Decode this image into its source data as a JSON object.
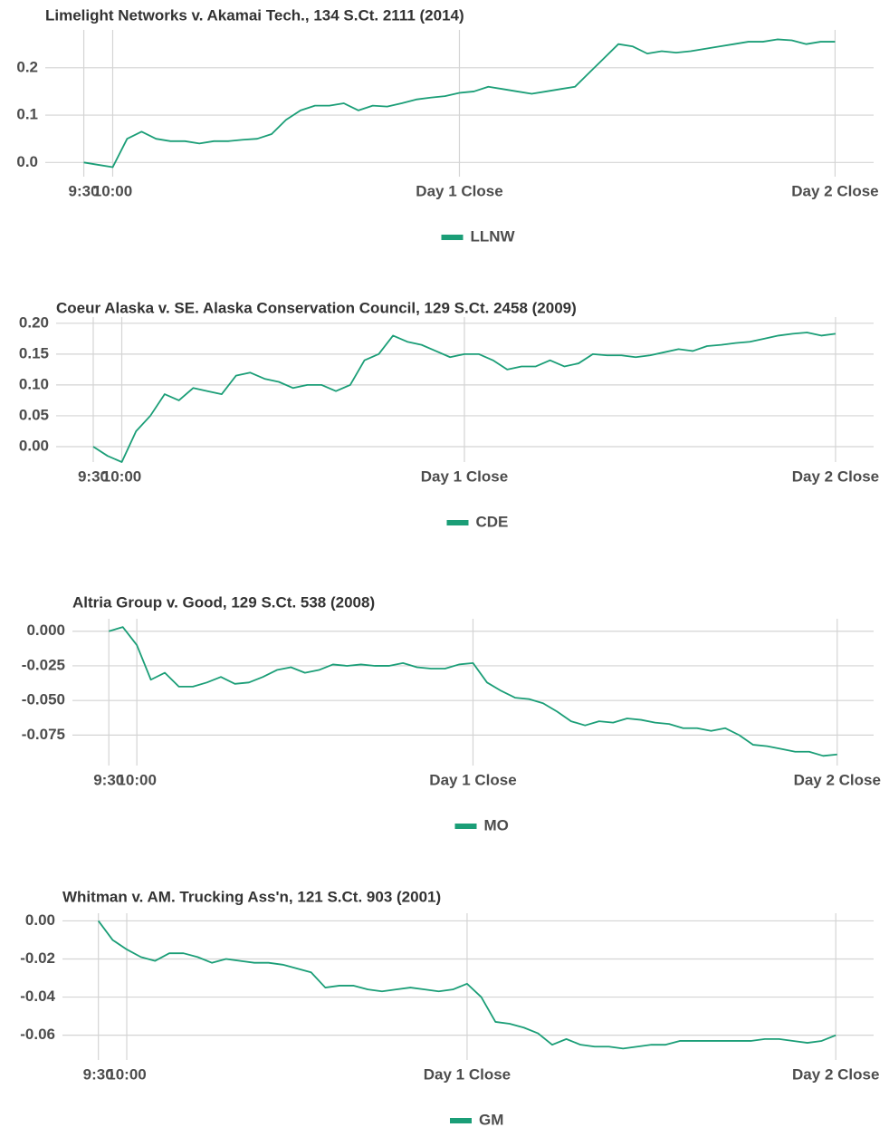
{
  "chart_data": [
    {
      "type": "line",
      "title": "Limelight Networks v. Akamai Tech., 134 S.Ct. 2111 (2014)",
      "x": [
        0,
        15,
        30,
        45,
        60,
        75,
        90,
        105,
        120,
        135,
        150,
        165,
        180,
        195,
        210,
        225,
        240,
        255,
        270,
        285,
        300,
        315,
        330,
        345,
        360,
        375,
        390,
        405,
        420,
        435,
        450,
        465,
        480,
        495,
        510,
        525,
        540,
        555,
        570,
        585,
        600,
        615,
        630,
        645,
        660,
        675,
        690,
        705,
        720,
        735,
        750,
        765,
        780
      ],
      "series": [
        {
          "name": "LLNW",
          "color": "#1b9e77",
          "values": [
            0.0,
            -0.005,
            -0.01,
            0.05,
            0.065,
            0.05,
            0.045,
            0.045,
            0.04,
            0.045,
            0.045,
            0.048,
            0.05,
            0.06,
            0.09,
            0.11,
            0.12,
            0.12,
            0.125,
            0.11,
            0.12,
            0.118,
            0.125,
            0.133,
            0.137,
            0.14,
            0.147,
            0.15,
            0.16,
            0.155,
            0.15,
            0.145,
            0.15,
            0.155,
            0.16,
            0.19,
            0.22,
            0.25,
            0.245,
            0.23,
            0.235,
            0.232,
            0.235,
            0.24,
            0.245,
            0.25,
            0.255,
            0.255,
            0.26,
            0.258,
            0.25,
            0.255,
            0.255
          ]
        }
      ],
      "xlim": [
        -40,
        820
      ],
      "xticks": [
        {
          "value": 0,
          "label": "9:30"
        },
        {
          "value": 30,
          "label": "10:00"
        },
        {
          "value": 390,
          "label": "Day 1 Close"
        },
        {
          "value": 780,
          "label": "Day 2 Close"
        }
      ],
      "ylim": [
        -0.03,
        0.28
      ],
      "yticks": [
        {
          "value": 0,
          "label": "0.0"
        },
        0.1,
        0.2
      ],
      "grid": true,
      "legend": "bottom"
    },
    {
      "type": "line",
      "title": "Coeur Alaska v. SE. Alaska Conservation Council, 129 S.Ct. 2458 (2009)",
      "x": [
        0,
        15,
        30,
        45,
        60,
        75,
        90,
        105,
        120,
        135,
        150,
        165,
        180,
        195,
        210,
        225,
        240,
        255,
        270,
        285,
        300,
        315,
        330,
        345,
        360,
        375,
        390,
        405,
        420,
        435,
        450,
        465,
        480,
        495,
        510,
        525,
        540,
        555,
        570,
        585,
        600,
        615,
        630,
        645,
        660,
        675,
        690,
        705,
        720,
        735,
        750,
        765,
        780
      ],
      "series": [
        {
          "name": "CDE",
          "color": "#1b9e77",
          "values": [
            0.0,
            -0.015,
            -0.025,
            0.025,
            0.05,
            0.085,
            0.075,
            0.095,
            0.09,
            0.085,
            0.115,
            0.12,
            0.11,
            0.105,
            0.095,
            0.1,
            0.1,
            0.09,
            0.1,
            0.14,
            0.15,
            0.18,
            0.17,
            0.165,
            0.155,
            0.145,
            0.15,
            0.15,
            0.14,
            0.125,
            0.13,
            0.13,
            0.14,
            0.13,
            0.135,
            0.15,
            0.148,
            0.148,
            0.145,
            0.148,
            0.153,
            0.158,
            0.155,
            0.163,
            0.165,
            0.168,
            0.17,
            0.175,
            0.18,
            0.183,
            0.185,
            0.18,
            0.183
          ]
        }
      ],
      "xlim": [
        -39,
        820
      ],
      "xticks": [
        {
          "value": 0,
          "label": "9:30"
        },
        {
          "value": 30,
          "label": "10:00"
        },
        {
          "value": 390,
          "label": "Day 1 Close"
        },
        {
          "value": 780,
          "label": "Day 2 Close"
        }
      ],
      "ylim": [
        -0.025,
        0.21
      ],
      "yticks": [
        {
          "value": 0,
          "label": "0.00"
        },
        0.05,
        {
          "value": 0.1,
          "label": "0.10"
        },
        0.15,
        {
          "value": 0.2,
          "label": "0.20"
        }
      ],
      "grid": true,
      "legend": "bottom"
    },
    {
      "type": "line",
      "title": "Altria Group v. Good, 129 S.Ct. 538 (2008)",
      "x": [
        0,
        15,
        30,
        45,
        60,
        75,
        90,
        105,
        120,
        135,
        150,
        165,
        180,
        195,
        210,
        225,
        240,
        255,
        270,
        285,
        300,
        315,
        330,
        345,
        360,
        375,
        390,
        405,
        420,
        435,
        450,
        465,
        480,
        495,
        510,
        525,
        540,
        555,
        570,
        585,
        600,
        615,
        630,
        645,
        660,
        675,
        690,
        705,
        720,
        735,
        750,
        765,
        780
      ],
      "series": [
        {
          "name": "MO",
          "color": "#1b9e77",
          "values": [
            0.0,
            0.003,
            -0.01,
            -0.035,
            -0.03,
            -0.04,
            -0.04,
            -0.037,
            -0.033,
            -0.038,
            -0.037,
            -0.033,
            -0.028,
            -0.026,
            -0.03,
            -0.028,
            -0.024,
            -0.025,
            -0.024,
            -0.025,
            -0.025,
            -0.023,
            -0.026,
            -0.027,
            -0.027,
            -0.024,
            -0.023,
            -0.037,
            -0.043,
            -0.048,
            -0.049,
            -0.052,
            -0.058,
            -0.065,
            -0.068,
            -0.065,
            -0.066,
            -0.063,
            -0.064,
            -0.066,
            -0.067,
            -0.07,
            -0.07,
            -0.072,
            -0.07,
            -0.075,
            -0.082,
            -0.083,
            -0.085,
            -0.087,
            -0.087,
            -0.09,
            -0.089
          ]
        }
      ],
      "xlim": [
        -39,
        819
      ],
      "xticks": [
        {
          "value": 0,
          "label": "9:30"
        },
        {
          "value": 30,
          "label": "10:00"
        },
        {
          "value": 390,
          "label": "Day 1 Close"
        },
        {
          "value": 780,
          "label": "Day 2 Close"
        }
      ],
      "ylim": [
        -0.097,
        0.009
      ],
      "yticks": [
        {
          "value": 0,
          "label": "0.000"
        },
        -0.025,
        {
          "value": -0.05,
          "label": "-0.050"
        },
        -0.075
      ],
      "grid": true,
      "legend": "bottom"
    },
    {
      "type": "line",
      "title": "Whitman v. AM. Trucking Ass'n, 121 S.Ct. 903 (2001)",
      "x": [
        0,
        15,
        30,
        45,
        60,
        75,
        90,
        105,
        120,
        135,
        150,
        165,
        180,
        195,
        210,
        225,
        240,
        255,
        270,
        285,
        300,
        315,
        330,
        345,
        360,
        375,
        390,
        405,
        420,
        435,
        450,
        465,
        480,
        495,
        510,
        525,
        540,
        555,
        570,
        585,
        600,
        615,
        630,
        645,
        660,
        675,
        690,
        705,
        720,
        735,
        750,
        765,
        780
      ],
      "series": [
        {
          "name": "GM",
          "color": "#1b9e77",
          "values": [
            0.0,
            -0.01,
            -0.015,
            -0.019,
            -0.021,
            -0.017,
            -0.017,
            -0.019,
            -0.022,
            -0.02,
            -0.021,
            -0.022,
            -0.022,
            -0.023,
            -0.025,
            -0.027,
            -0.035,
            -0.034,
            -0.034,
            -0.036,
            -0.037,
            -0.036,
            -0.035,
            -0.036,
            -0.037,
            -0.036,
            -0.033,
            -0.04,
            -0.053,
            -0.054,
            -0.056,
            -0.059,
            -0.065,
            -0.062,
            -0.065,
            -0.066,
            -0.066,
            -0.067,
            -0.066,
            -0.065,
            -0.065,
            -0.063,
            -0.063,
            -0.063,
            -0.063,
            -0.063,
            -0.063,
            -0.062,
            -0.062,
            -0.063,
            -0.064,
            -0.063,
            -0.06
          ]
        }
      ],
      "xlim": [
        -38,
        820
      ],
      "xticks": [
        {
          "value": 0,
          "label": "9:30"
        },
        {
          "value": 30,
          "label": "10:00"
        },
        {
          "value": 390,
          "label": "Day 1 Close"
        },
        {
          "value": 780,
          "label": "Day 2 Close"
        }
      ],
      "ylim": [
        -0.073,
        0.004
      ],
      "yticks": [
        {
          "value": 0,
          "label": "0.00"
        },
        -0.02,
        -0.04,
        -0.06
      ],
      "grid": true,
      "legend": "bottom"
    }
  ]
}
